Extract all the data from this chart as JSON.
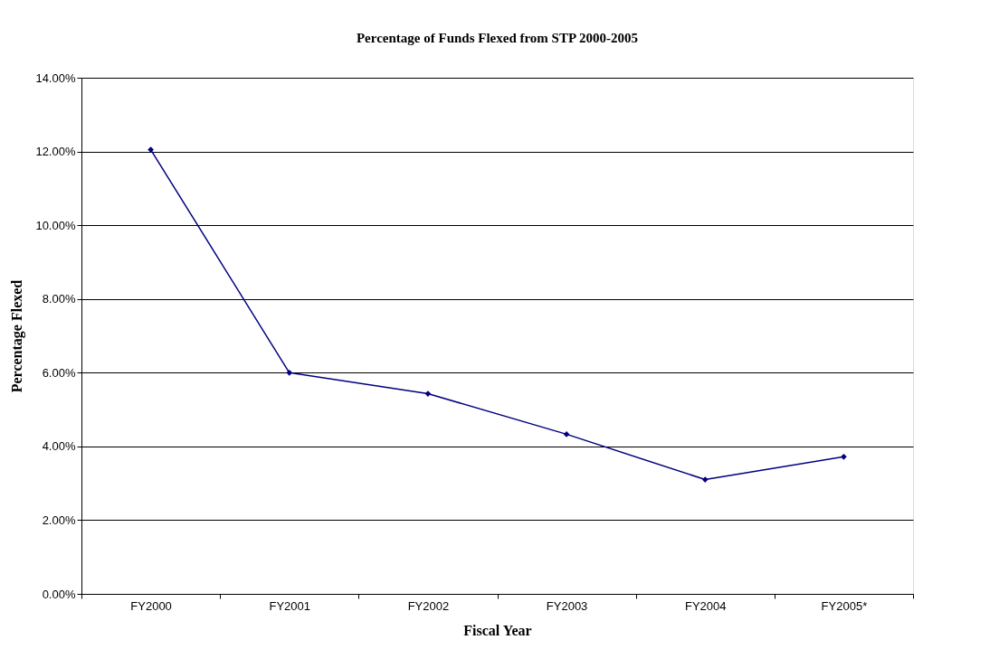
{
  "chart_data": {
    "type": "line",
    "title": "Percentage of Funds Flexed from STP 2000-2005",
    "xlabel": "Fiscal Year",
    "ylabel": "Percentage Flexed",
    "categories": [
      "FY2000",
      "FY2001",
      "FY2002",
      "FY2003",
      "FY2004",
      "FY2005*"
    ],
    "series": [
      {
        "color": "#000080",
        "values": [
          12.05,
          6.0,
          5.43,
          4.33,
          3.1,
          3.72
        ]
      }
    ],
    "ylim": [
      0,
      14
    ],
    "yticks": [
      {
        "value": 0,
        "label": "0.00%"
      },
      {
        "value": 2,
        "label": "2.00%"
      },
      {
        "value": 4,
        "label": "4.00%"
      },
      {
        "value": 6,
        "label": "6.00%"
      },
      {
        "value": 8,
        "label": "8.00%"
      },
      {
        "value": 10,
        "label": "10.00%"
      },
      {
        "value": 12,
        "label": "12.00%"
      },
      {
        "value": 14,
        "label": "14.00%"
      }
    ],
    "grid": "y",
    "marker": "diamond",
    "line_style": "solid"
  }
}
